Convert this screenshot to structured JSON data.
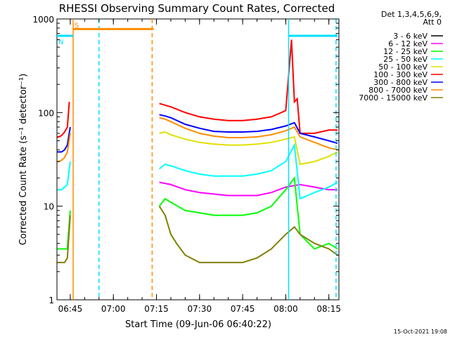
{
  "chart_data": {
    "type": "line",
    "title": "RHESSI Observing Summary Count Rates, Corrected",
    "xlabel": "Start Time (09-Jun-06 06:40:22)",
    "ylabel": "Corrected Count Rate (s⁻¹ detector⁻¹)",
    "yscale": "log",
    "ylim": [
      1,
      1000
    ],
    "xlim": [
      "06:40:22",
      "08:18:30"
    ],
    "x_ticks": [
      "06:45",
      "07:00",
      "07:15",
      "07:30",
      "07:45",
      "08:00",
      "08:15"
    ],
    "y_ticks": [
      "1",
      "10",
      "100",
      "1000"
    ],
    "legend_header": [
      "Det 1,3,4,5,6,9,",
      "Att 0"
    ],
    "legend_position": "top-right outside plot",
    "timestamp": "15-Oct-2021 19:08",
    "flags": [
      {
        "label": "S",
        "color": "#ff8c00",
        "level": 780,
        "start": "06:46:00",
        "end": "07:14:00"
      },
      {
        "label": "N",
        "color": "#00e0ff",
        "level": 660,
        "start": "06:40:22",
        "end": "06:46:00"
      },
      {
        "label": "",
        "color": "#00e0ff",
        "level": 660,
        "start": "08:01:00",
        "end": "08:18:00"
      }
    ],
    "markers": [
      {
        "time": "06:46:00",
        "color": "#ff8c00",
        "style": "solid"
      },
      {
        "time": "06:55:00",
        "color": "#00e0ff",
        "style": "dashed"
      },
      {
        "time": "07:13:30",
        "color": "#ff8c00",
        "style": "dashed"
      },
      {
        "time": "08:01:00",
        "color": "#00e0ff",
        "style": "solid"
      },
      {
        "time": "08:17:30",
        "color": "#00e0ff",
        "style": "dashed"
      }
    ],
    "series": [
      {
        "name": "3 - 6 keV",
        "color": "#000000",
        "x": [],
        "y": []
      },
      {
        "name": "6 - 12 keV",
        "color": "#ff00ff",
        "x": [
          "06:40:30",
          "06:41",
          "06:42",
          "06:43",
          "06:44",
          "06:44:40",
          "07:16",
          "07:20",
          "07:25",
          "07:30",
          "07:40",
          "07:50",
          "07:55",
          "08:00",
          "08:05",
          "08:10",
          "08:15",
          "08:18"
        ],
        "y": [
          null,
          null,
          null,
          null,
          null,
          null,
          18,
          17,
          15,
          14,
          13,
          13,
          14,
          16,
          17,
          16,
          15,
          15
        ]
      },
      {
        "name": "12 - 25 keV",
        "color": "#00ff00",
        "x": [
          "06:40:30",
          "06:41",
          "06:42",
          "06:43",
          "06:44",
          "06:45",
          "07:16",
          "07:18",
          "07:20",
          "07:25",
          "07:30",
          "07:35",
          "07:40",
          "07:45",
          "07:50",
          "07:55",
          "08:00",
          "08:03",
          "08:05",
          "08:10",
          "08:15",
          "08:18"
        ],
        "y": [
          3.5,
          3.5,
          3.5,
          3.5,
          3.5,
          9,
          10,
          12,
          11,
          9,
          8.5,
          8,
          8,
          8,
          8.5,
          10,
          15,
          20,
          5,
          3.5,
          4,
          3.5
        ]
      },
      {
        "name": "25 - 50 keV",
        "color": "#00ffff",
        "x": [
          "06:40:30",
          "06:41",
          "06:42",
          "06:43",
          "06:44",
          "06:45",
          "07:16",
          "07:18",
          "07:20",
          "07:25",
          "07:30",
          "07:35",
          "07:40",
          "07:45",
          "07:50",
          "07:55",
          "08:00",
          "08:03",
          "08:05",
          "08:10",
          "08:15",
          "08:18"
        ],
        "y": [
          15,
          15,
          15,
          16,
          17,
          30,
          25,
          28,
          27,
          24,
          22,
          21,
          21,
          21,
          22,
          24,
          30,
          45,
          12,
          14,
          16,
          18
        ]
      },
      {
        "name": "50 - 100 keV",
        "color": "#e0e000",
        "x": [
          "07:16",
          "07:18",
          "07:20",
          "07:25",
          "07:30",
          "07:35",
          "07:40",
          "07:45",
          "07:50",
          "07:55",
          "08:00",
          "08:03",
          "08:05",
          "08:10",
          "08:15",
          "08:18"
        ],
        "y": [
          60,
          62,
          58,
          52,
          48,
          46,
          45,
          45,
          46,
          48,
          52,
          55,
          28,
          30,
          34,
          38
        ]
      },
      {
        "name": "100 - 300 keV",
        "color": "#ff0000",
        "x": [
          "06:40:30",
          "06:41",
          "06:42",
          "06:43",
          "06:44",
          "06:44:40",
          "07:16",
          "07:18",
          "07:20",
          "07:25",
          "07:30",
          "07:35",
          "07:40",
          "07:45",
          "07:50",
          "07:55",
          "08:00",
          "08:02",
          "08:03",
          "08:04",
          "08:05",
          "08:10",
          "08:15",
          "08:18"
        ],
        "y": [
          55,
          55,
          57,
          62,
          70,
          130,
          125,
          120,
          115,
          100,
          90,
          85,
          82,
          82,
          85,
          90,
          105,
          600,
          130,
          140,
          60,
          60,
          65,
          65
        ]
      },
      {
        "name": "300 - 800 keV",
        "color": "#0000ff",
        "x": [
          "06:40:30",
          "06:41",
          "06:42",
          "06:43",
          "06:44",
          "06:45",
          "07:16",
          "07:18",
          "07:20",
          "07:25",
          "07:30",
          "07:35",
          "07:40",
          "07:45",
          "07:50",
          "07:55",
          "08:00",
          "08:03",
          "08:05",
          "08:10",
          "08:15",
          "08:18"
        ],
        "y": [
          38,
          38,
          38,
          40,
          45,
          70,
          95,
          92,
          88,
          75,
          68,
          63,
          62,
          62,
          63,
          66,
          72,
          78,
          60,
          55,
          50,
          47
        ]
      },
      {
        "name": "800 - 7000 keV",
        "color": "#ff8c00",
        "x": [
          "06:40:30",
          "06:41",
          "06:42",
          "06:43",
          "06:44",
          "06:45",
          "07:16",
          "07:18",
          "07:20",
          "07:25",
          "07:30",
          "07:35",
          "07:40",
          "07:45",
          "07:50",
          "07:55",
          "08:00",
          "08:03",
          "08:05",
          "08:10",
          "08:15",
          "08:18"
        ],
        "y": [
          30,
          30,
          31,
          33,
          38,
          60,
          88,
          85,
          80,
          68,
          60,
          56,
          54,
          54,
          55,
          58,
          64,
          70,
          55,
          48,
          42,
          40
        ]
      },
      {
        "name": "7000 - 15000 keV",
        "color": "#808000",
        "x": [
          "06:40:30",
          "06:41",
          "06:42",
          "06:43",
          "06:44",
          "06:45",
          "07:16",
          "07:18",
          "07:20",
          "07:22",
          "07:25",
          "07:30",
          "07:35",
          "07:40",
          "07:45",
          "07:50",
          "07:55",
          "08:00",
          "08:03",
          "08:05",
          "08:10",
          "08:15",
          "08:18"
        ],
        "y": [
          2.5,
          2.5,
          2.5,
          2.5,
          2.8,
          8,
          10,
          8,
          5,
          4,
          3,
          2.5,
          2.5,
          2.5,
          2.5,
          2.8,
          3.5,
          5,
          6,
          5,
          4,
          3.5,
          3
        ]
      }
    ]
  }
}
